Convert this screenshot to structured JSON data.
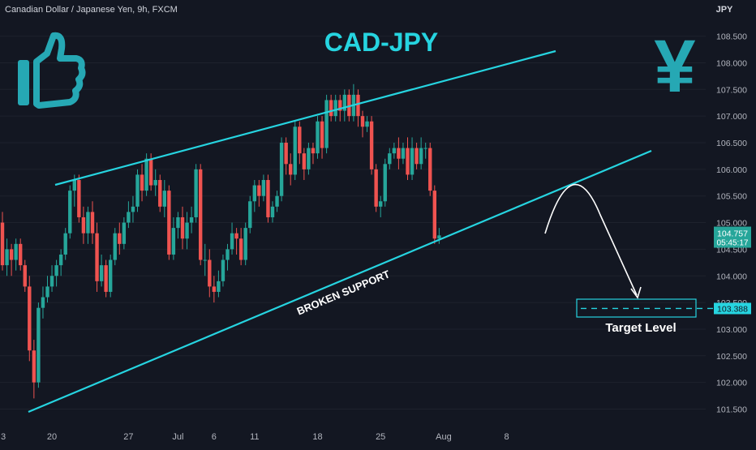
{
  "header": {
    "symbol": "Canadian Dollar / Japanese Yen, 9h, FXCM",
    "currency": "JPY"
  },
  "annotations": {
    "title": "CAD-JPY",
    "support_label": "BROKEN SUPPORT",
    "target_label": "Target Level",
    "thumb_icon": "thumbs-up-icon",
    "yen_icon": "yen-sign-icon",
    "colors": {
      "accent": "#26d4e0",
      "up": "#26a69a",
      "down": "#ef5350",
      "background": "#131722"
    }
  },
  "chart_data": {
    "type": "candlestick",
    "title": "CAD-JPY",
    "ylabel": "JPY",
    "ylim": [
      101.2,
      108.75
    ],
    "y_ticks": [
      "101.500",
      "102.000",
      "102.500",
      "103.000",
      "103.500",
      "104.000",
      "104.500",
      "105.000",
      "105.500",
      "106.000",
      "106.500",
      "107.000",
      "107.500",
      "108.000",
      "108.500"
    ],
    "x_ticks": [
      {
        "label": "3",
        "i": -3
      },
      {
        "label": "20",
        "i": 11
      },
      {
        "label": "27",
        "i": 28
      },
      {
        "label": "Jul",
        "i": 39
      },
      {
        "label": "6",
        "i": 47
      },
      {
        "label": "11",
        "i": 56
      },
      {
        "label": "18",
        "i": 70
      },
      {
        "label": "25",
        "i": 84
      },
      {
        "label": "Aug",
        "i": 98
      },
      {
        "label": "8",
        "i": 112
      }
    ],
    "last_price": {
      "value": "104.757",
      "countdown": "05:45:17"
    },
    "target_price": "103.388",
    "candles": [
      [
        105.0,
        104.2,
        105.2,
        104.1
      ],
      [
        104.2,
        104.5,
        104.7,
        104.0
      ],
      [
        104.5,
        104.3,
        104.6,
        104.0
      ],
      [
        104.3,
        104.6,
        104.7,
        104.1
      ],
      [
        104.6,
        104.2,
        104.7,
        104.1
      ],
      [
        104.2,
        103.8,
        104.3,
        103.7
      ],
      [
        103.8,
        102.6,
        104.0,
        102.4
      ],
      [
        102.6,
        102.0,
        102.8,
        101.7
      ],
      [
        102.0,
        103.4,
        103.5,
        101.9
      ],
      [
        103.4,
        103.6,
        103.8,
        103.2
      ],
      [
        103.6,
        103.8,
        104.0,
        103.5
      ],
      [
        103.8,
        104.0,
        104.2,
        103.7
      ],
      [
        104.0,
        104.2,
        104.3,
        103.8
      ],
      [
        104.2,
        104.4,
        104.5,
        104.0
      ],
      [
        104.4,
        104.8,
        104.9,
        104.3
      ],
      [
        104.8,
        105.6,
        105.7,
        104.7
      ],
      [
        105.6,
        105.8,
        105.9,
        105.3
      ],
      [
        105.8,
        105.1,
        105.9,
        105.0
      ],
      [
        105.1,
        104.8,
        105.3,
        104.6
      ],
      [
        104.8,
        105.2,
        105.3,
        104.6
      ],
      [
        105.2,
        104.8,
        105.4,
        104.6
      ],
      [
        104.8,
        103.9,
        105.0,
        103.7
      ],
      [
        103.9,
        104.2,
        104.4,
        103.8
      ],
      [
        104.2,
        103.7,
        104.3,
        103.6
      ],
      [
        103.7,
        104.3,
        104.4,
        103.6
      ],
      [
        104.3,
        104.8,
        104.9,
        104.2
      ],
      [
        104.8,
        104.6,
        105.0,
        104.4
      ],
      [
        104.6,
        105.0,
        105.1,
        104.5
      ],
      [
        105.0,
        105.2,
        105.4,
        104.9
      ],
      [
        105.2,
        105.3,
        105.5,
        105.0
      ],
      [
        105.3,
        105.9,
        106.0,
        105.2
      ],
      [
        105.9,
        105.6,
        106.1,
        105.4
      ],
      [
        105.6,
        106.2,
        106.3,
        105.5
      ],
      [
        106.2,
        105.7,
        106.3,
        105.6
      ],
      [
        105.7,
        105.8,
        106.0,
        105.5
      ],
      [
        105.8,
        105.3,
        105.9,
        105.2
      ],
      [
        105.3,
        105.6,
        105.8,
        105.1
      ],
      [
        105.6,
        104.4,
        105.7,
        104.3
      ],
      [
        104.4,
        104.9,
        105.1,
        104.3
      ],
      [
        104.9,
        105.1,
        105.2,
        104.7
      ],
      [
        105.1,
        104.7,
        105.3,
        104.5
      ],
      [
        104.7,
        105.0,
        105.2,
        104.5
      ],
      [
        105.0,
        105.1,
        105.3,
        104.8
      ],
      [
        105.1,
        106.0,
        106.1,
        105.0
      ],
      [
        106.0,
        104.3,
        106.1,
        104.2
      ],
      [
        104.3,
        104.3,
        104.6,
        104.0
      ],
      [
        104.3,
        103.8,
        104.5,
        103.6
      ],
      [
        103.8,
        103.7,
        104.0,
        103.5
      ],
      [
        103.7,
        103.9,
        104.1,
        103.6
      ],
      [
        103.9,
        104.3,
        104.4,
        103.8
      ],
      [
        104.3,
        104.5,
        104.6,
        104.1
      ],
      [
        104.5,
        104.8,
        105.0,
        104.4
      ],
      [
        104.8,
        104.7,
        104.9,
        104.4
      ],
      [
        104.7,
        104.3,
        104.9,
        104.2
      ],
      [
        104.3,
        104.9,
        105.0,
        104.2
      ],
      [
        104.9,
        105.4,
        105.5,
        104.8
      ],
      [
        105.4,
        105.7,
        105.8,
        105.2
      ],
      [
        105.7,
        105.5,
        105.8,
        105.3
      ],
      [
        105.5,
        105.8,
        105.9,
        105.4
      ],
      [
        105.8,
        105.1,
        105.9,
        105.0
      ],
      [
        105.1,
        105.3,
        105.4,
        105.0
      ],
      [
        105.3,
        105.5,
        105.6,
        105.2
      ],
      [
        105.5,
        106.5,
        106.6,
        105.4
      ],
      [
        106.5,
        106.1,
        106.6,
        105.9
      ],
      [
        106.1,
        105.9,
        106.3,
        105.7
      ],
      [
        105.9,
        106.8,
        106.9,
        105.8
      ],
      [
        106.8,
        106.3,
        106.9,
        106.1
      ],
      [
        106.3,
        106.0,
        106.4,
        105.8
      ],
      [
        106.0,
        106.4,
        106.5,
        105.9
      ],
      [
        106.4,
        106.3,
        106.5,
        106.1
      ],
      [
        106.3,
        106.9,
        107.0,
        106.2
      ],
      [
        106.9,
        106.4,
        107.0,
        106.2
      ],
      [
        106.4,
        107.3,
        107.4,
        106.3
      ],
      [
        107.3,
        107.0,
        107.4,
        106.9
      ],
      [
        107.0,
        107.3,
        107.4,
        106.9
      ],
      [
        107.3,
        107.1,
        107.4,
        106.9
      ],
      [
        107.1,
        107.4,
        107.5,
        106.9
      ],
      [
        107.4,
        107.0,
        107.5,
        106.9
      ],
      [
        107.0,
        107.4,
        107.6,
        106.9
      ],
      [
        107.4,
        107.0,
        107.5,
        106.8
      ],
      [
        107.0,
        106.8,
        107.1,
        106.6
      ],
      [
        106.8,
        106.9,
        107.0,
        106.7
      ],
      [
        106.9,
        106.0,
        107.0,
        105.9
      ],
      [
        106.0,
        105.3,
        106.1,
        105.2
      ],
      [
        105.3,
        105.4,
        105.5,
        105.1
      ],
      [
        105.4,
        106.1,
        106.2,
        105.3
      ],
      [
        106.1,
        106.3,
        106.4,
        106.0
      ],
      [
        106.3,
        106.4,
        106.5,
        106.2
      ],
      [
        106.4,
        106.2,
        106.6,
        106.0
      ],
      [
        106.2,
        106.4,
        106.5,
        106.1
      ],
      [
        106.4,
        105.9,
        106.6,
        105.8
      ],
      [
        105.9,
        106.4,
        106.6,
        105.8
      ],
      [
        106.4,
        106.1,
        106.5,
        106.0
      ],
      [
        106.1,
        106.4,
        106.6,
        106.0
      ],
      [
        106.4,
        106.4,
        106.5,
        106.2
      ],
      [
        106.4,
        105.6,
        106.5,
        105.5
      ],
      [
        105.6,
        104.7,
        105.7,
        104.6
      ],
      [
        104.7,
        104.76,
        104.9,
        104.6
      ]
    ]
  }
}
